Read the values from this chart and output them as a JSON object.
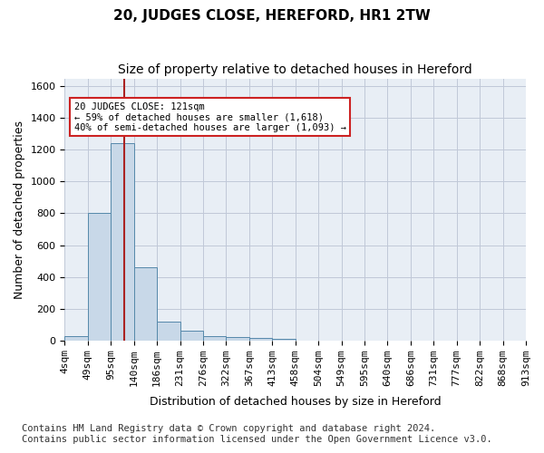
{
  "title": "20, JUDGES CLOSE, HEREFORD, HR1 2TW",
  "subtitle": "Size of property relative to detached houses in Hereford",
  "xlabel": "Distribution of detached houses by size in Hereford",
  "ylabel": "Number of detached properties",
  "bin_labels": [
    "4sqm",
    "49sqm",
    "95sqm",
    "140sqm",
    "186sqm",
    "231sqm",
    "276sqm",
    "322sqm",
    "367sqm",
    "413sqm",
    "458sqm",
    "504sqm",
    "549sqm",
    "595sqm",
    "640sqm",
    "686sqm",
    "731sqm",
    "777sqm",
    "822sqm",
    "868sqm",
    "913sqm"
  ],
  "bar_values": [
    25,
    800,
    1240,
    460,
    120,
    60,
    25,
    20,
    15,
    10,
    0,
    0,
    0,
    0,
    0,
    0,
    0,
    0,
    0,
    0
  ],
  "bar_color": "#c8d8e8",
  "bar_edge_color": "#5588aa",
  "grid_color": "#c0c8d8",
  "background_color": "#e8eef5",
  "vertical_line_x": 2.6,
  "vertical_line_color": "#aa2222",
  "annotation_text": "20 JUDGES CLOSE: 121sqm\n← 59% of detached houses are smaller (1,618)\n40% of semi-detached houses are larger (1,093) →",
  "annotation_box_color": "#ffffff",
  "annotation_box_edgecolor": "#cc2222",
  "ylim": [
    0,
    1650
  ],
  "yticks": [
    0,
    200,
    400,
    600,
    800,
    1000,
    1200,
    1400,
    1600
  ],
  "footer_line1": "Contains HM Land Registry data © Crown copyright and database right 2024.",
  "footer_line2": "Contains public sector information licensed under the Open Government Licence v3.0.",
  "title_fontsize": 11,
  "subtitle_fontsize": 10,
  "label_fontsize": 9,
  "tick_fontsize": 8,
  "footer_fontsize": 7.5
}
